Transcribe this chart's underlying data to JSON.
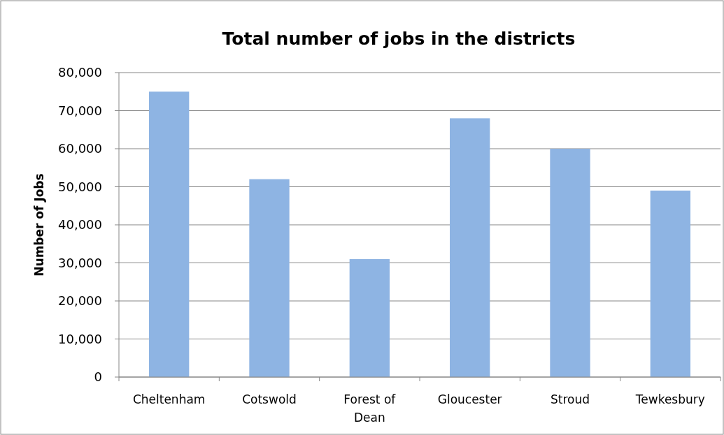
{
  "chart_data": {
    "type": "bar",
    "title": "Total number of jobs in the districts",
    "ylabel": "Number of Jobs",
    "categories": [
      "Cheltenham",
      "Cotswold",
      "Forest of Dean",
      "Gloucester",
      "Stroud",
      "Tewkesbury"
    ],
    "values": [
      75000,
      52000,
      31000,
      68000,
      60000,
      49000
    ],
    "color": "#8eb4e3",
    "ylim": [
      0,
      80000
    ],
    "yticks": [
      {
        "value": 0,
        "label": "0"
      },
      {
        "value": 10000,
        "label": "10,000"
      },
      {
        "value": 20000,
        "label": "20,000"
      },
      {
        "value": 30000,
        "label": "30,000"
      },
      {
        "value": 40000,
        "label": "40,000"
      },
      {
        "value": 50000,
        "label": "50,000"
      },
      {
        "value": 60000,
        "label": "60,000"
      },
      {
        "value": 70000,
        "label": "70,000"
      },
      {
        "value": 80000,
        "label": "80,000"
      }
    ],
    "grid": "y"
  }
}
